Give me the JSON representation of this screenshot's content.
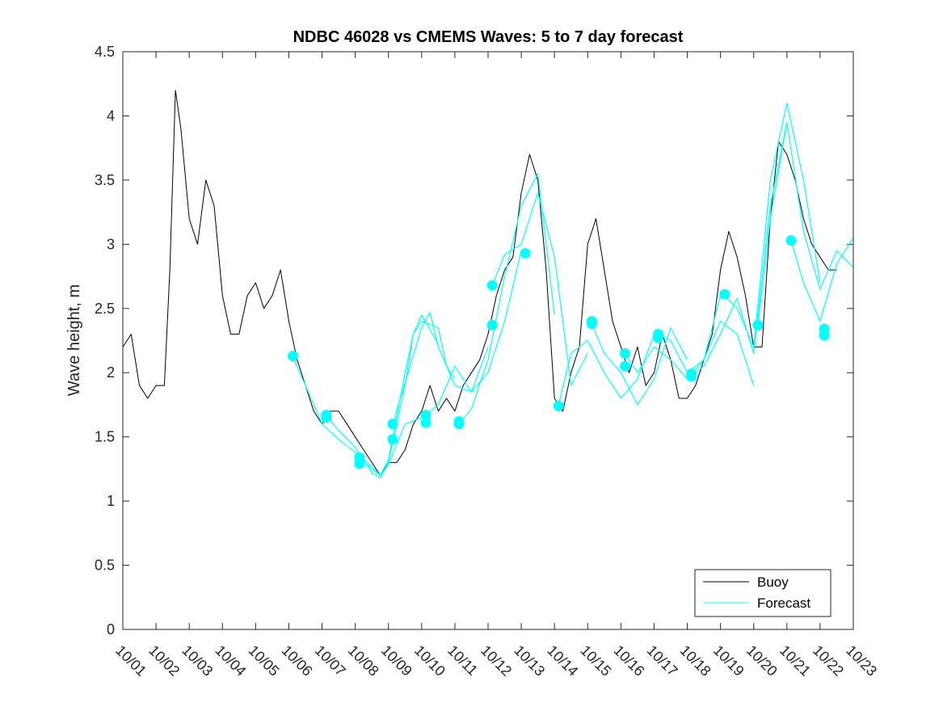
{
  "chart_data": {
    "type": "line",
    "title": "NDBC 46028 vs CMEMS Waves: 5 to 7 day forecast",
    "xlabel": "",
    "ylabel": "Wave height, m",
    "ylim": [
      0,
      4.5
    ],
    "yticks": [
      0,
      0.5,
      1,
      1.5,
      2,
      2.5,
      3,
      3.5,
      4,
      4.5
    ],
    "ytick_labels": [
      "0",
      "0.5",
      "1",
      "1.5",
      "2",
      "2.5",
      "3",
      "3.5",
      "4",
      "4.5"
    ],
    "xlim": [
      "10/01",
      "10/23"
    ],
    "xtick_labels": [
      "10/01",
      "10/02",
      "10/03",
      "10/04",
      "10/05",
      "10/06",
      "10/07",
      "10/08",
      "10/09",
      "10/10",
      "10/11",
      "10/12",
      "10/13",
      "10/14",
      "10/15",
      "10/16",
      "10/17",
      "10/18",
      "10/19",
      "10/20",
      "10/21",
      "10/22",
      "10/23"
    ],
    "grid": false,
    "legend": {
      "placement": "bottom-right",
      "entries": [
        "Buoy",
        "Forecast"
      ]
    },
    "colors": {
      "buoy": "#000000",
      "forecast": "#00ffff"
    },
    "series": [
      {
        "name": "Buoy",
        "style": "line",
        "x": [
          "10/01 00:00",
          "10/01 06:00",
          "10/01 12:00",
          "10/01 18:00",
          "10/02 00:00",
          "10/02 06:00",
          "10/02 10:00",
          "10/02 14:00",
          "10/02 18:00",
          "10/03 00:00",
          "10/03 06:00",
          "10/03 12:00",
          "10/03 18:00",
          "10/04 00:00",
          "10/04 06:00",
          "10/04 12:00",
          "10/04 18:00",
          "10/05 00:00",
          "10/05 06:00",
          "10/05 12:00",
          "10/05 18:00",
          "10/06 00:00",
          "10/06 06:00",
          "10/06 12:00",
          "10/06 18:00",
          "10/07 00:00",
          "10/07 06:00",
          "10/07 12:00",
          "10/07 18:00",
          "10/08 00:00",
          "10/08 06:00",
          "10/08 12:00",
          "10/08 18:00",
          "10/09 00:00",
          "10/09 06:00",
          "10/09 12:00",
          "10/09 18:00",
          "10/10 00:00",
          "10/10 06:00",
          "10/10 12:00",
          "10/10 18:00",
          "10/11 00:00",
          "10/11 06:00",
          "10/11 12:00",
          "10/11 18:00",
          "10/12 00:00",
          "10/12 06:00",
          "10/12 12:00",
          "10/12 18:00",
          "10/13 00:00",
          "10/13 06:00",
          "10/13 12:00",
          "10/13 18:00",
          "10/14 00:00",
          "10/14 06:00",
          "10/14 12:00",
          "10/14 18:00",
          "10/15 00:00",
          "10/15 06:00",
          "10/15 12:00",
          "10/15 18:00",
          "10/16 00:00",
          "10/16 06:00",
          "10/16 12:00",
          "10/16 18:00",
          "10/17 00:00",
          "10/17 06:00",
          "10/17 12:00",
          "10/17 18:00",
          "10/18 00:00",
          "10/18 06:00",
          "10/18 12:00",
          "10/18 18:00",
          "10/19 00:00",
          "10/19 06:00",
          "10/19 12:00",
          "10/19 18:00",
          "10/20 00:00",
          "10/20 06:00",
          "10/20 12:00",
          "10/20 18:00",
          "10/21 00:00",
          "10/21 06:00",
          "10/21 12:00",
          "10/21 18:00",
          "10/22 00:00",
          "10/22 06:00",
          "10/22 12:00"
        ],
        "values": [
          2.2,
          2.3,
          1.9,
          1.8,
          1.9,
          1.9,
          2.8,
          4.2,
          3.9,
          3.2,
          3.0,
          3.5,
          3.3,
          2.6,
          2.3,
          2.3,
          2.6,
          2.7,
          2.5,
          2.6,
          2.8,
          2.4,
          2.1,
          1.9,
          1.7,
          1.6,
          1.7,
          1.7,
          1.6,
          1.5,
          1.4,
          1.3,
          1.2,
          1.3,
          1.3,
          1.4,
          1.6,
          1.7,
          1.9,
          1.7,
          1.8,
          1.7,
          1.9,
          2.0,
          2.1,
          2.3,
          2.6,
          2.8,
          2.9,
          3.4,
          3.7,
          3.5,
          2.8,
          1.8,
          1.7,
          2.0,
          2.2,
          3.0,
          3.2,
          2.8,
          2.4,
          2.2,
          2.0,
          2.2,
          1.9,
          2.0,
          2.3,
          2.1,
          1.8,
          1.8,
          1.9,
          2.1,
          2.3,
          2.8,
          3.1,
          2.9,
          2.6,
          2.2,
          2.2,
          3.2,
          3.8,
          3.7,
          3.5,
          3.2,
          3.0,
          2.9,
          2.8,
          2.8
        ]
      },
      {
        "name": "Forecast",
        "style": "line",
        "segments": [
          {
            "x": [
              "10/06 03:00",
              "10/06 12:00",
              "10/07 00:00",
              "10/07 12:00",
              "10/08 00:00",
              "10/08 12:00",
              "10/08 18:00",
              "10/09 00:00",
              "10/09 12:00",
              "10/10 00:00"
            ],
            "values": [
              2.12,
              1.9,
              1.6,
              1.48,
              1.38,
              1.27,
              1.2,
              1.28,
              1.6,
              1.65
            ]
          },
          {
            "x": [
              "10/07 03:00",
              "10/07 12:00",
              "10/08 00:00",
              "10/08 12:00",
              "10/08 18:00",
              "10/09 00:00",
              "10/09 12:00",
              "10/09 18:00",
              "10/10 00:00",
              "10/10 12:00"
            ],
            "values": [
              1.66,
              1.55,
              1.42,
              1.22,
              1.18,
              1.3,
              1.9,
              2.3,
              2.45,
              2.22
            ]
          },
          {
            "x": [
              "10/08 03:00",
              "10/08 12:00",
              "10/08 18:00",
              "10/09 00:00",
              "10/09 12:00",
              "10/09 18:00",
              "10/10 00:00",
              "10/10 12:00",
              "10/10 18:00",
              "10/11 00:00"
            ],
            "values": [
              1.34,
              1.25,
              1.2,
              1.32,
              2.0,
              2.3,
              2.4,
              2.35,
              2.05,
              1.95
            ]
          },
          {
            "x": [
              "10/09 03:00",
              "10/09 12:00",
              "10/10 00:00",
              "10/10 06:00",
              "10/10 12:00",
              "10/11 00:00",
              "10/11 12:00",
              "10/12 00:00"
            ],
            "values": [
              1.6,
              1.92,
              2.35,
              2.47,
              2.2,
              1.9,
              1.85,
              2.2
            ]
          },
          {
            "x": [
              "10/10 03:00",
              "10/10 12:00",
              "10/11 00:00",
              "10/11 12:00",
              "10/12 00:00",
              "10/12 12:00",
              "10/13 00:00"
            ],
            "values": [
              1.67,
              1.75,
              2.05,
              1.85,
              2.0,
              2.4,
              2.95
            ]
          },
          {
            "x": [
              "10/11 03:00",
              "10/11 12:00",
              "10/12 00:00",
              "10/12 12:00",
              "10/13 00:00",
              "10/13 12:00",
              "10/14 00:00"
            ],
            "values": [
              1.6,
              1.72,
              2.1,
              2.75,
              3.3,
              3.55,
              2.45
            ]
          },
          {
            "x": [
              "10/12 03:00",
              "10/12 12:00",
              "10/13 00:00",
              "10/13 12:00",
              "10/14 00:00",
              "10/14 12:00",
              "10/15 00:00"
            ],
            "values": [
              2.68,
              2.92,
              3.0,
              3.4,
              2.9,
              1.9,
              2.15
            ]
          },
          {
            "x": [
              "10/14 03:00",
              "10/14 12:00",
              "10/15 00:00",
              "10/15 12:00",
              "10/16 00:00",
              "10/16 12:00",
              "10/17 00:00"
            ],
            "values": [
              1.75,
              2.15,
              2.25,
              2.0,
              1.8,
              1.95,
              2.3
            ]
          },
          {
            "x": [
              "10/15 03:00",
              "10/15 12:00",
              "10/16 00:00",
              "10/16 12:00",
              "10/17 00:00",
              "10/17 12:00",
              "10/18 00:00"
            ],
            "values": [
              2.38,
              2.15,
              2.0,
              1.75,
              1.95,
              2.35,
              2.1
            ]
          },
          {
            "x": [
              "10/16 03:00",
              "10/16 12:00",
              "10/17 00:00",
              "10/17 12:00",
              "10/18 00:00",
              "10/18 12:00",
              "10/19 00:00"
            ],
            "values": [
              2.15,
              2.0,
              2.2,
              2.1,
              1.95,
              2.1,
              2.6
            ]
          },
          {
            "x": [
              "10/17 03:00",
              "10/17 12:00",
              "10/18 00:00",
              "10/18 12:00",
              "10/19 00:00",
              "10/19 12:00",
              "10/20 00:00"
            ],
            "values": [
              2.3,
              2.25,
              2.0,
              2.1,
              2.4,
              2.3,
              1.9
            ]
          },
          {
            "x": [
              "10/18 03:00",
              "10/18 12:00",
              "10/19 00:00",
              "10/19 12:00",
              "10/20 00:00",
              "10/20 12:00",
              "10/21 00:00"
            ],
            "values": [
              1.98,
              2.05,
              2.3,
              2.58,
              2.15,
              3.3,
              3.95
            ]
          },
          {
            "x": [
              "10/19 03:00",
              "10/19 12:00",
              "10/20 00:00",
              "10/20 12:00",
              "10/21 00:00",
              "10/21 12:00",
              "10/22 00:00"
            ],
            "values": [
              2.6,
              2.5,
              2.2,
              3.5,
              4.1,
              3.5,
              2.7
            ]
          },
          {
            "x": [
              "10/20 03:00",
              "10/20 12:00",
              "10/21 00:00",
              "10/21 12:00",
              "10/22 00:00",
              "10/22 12:00",
              "10/23 00:00"
            ],
            "values": [
              2.37,
              3.2,
              3.95,
              3.1,
              2.65,
              2.95,
              2.82
            ]
          },
          {
            "x": [
              "10/21 03:00",
              "10/21 12:00",
              "10/22 00:00",
              "10/22 12:00",
              "10/23 00:00"
            ],
            "values": [
              3.03,
              2.7,
              2.4,
              2.85,
              3.05
            ]
          }
        ]
      },
      {
        "name": "Forecast",
        "style": "markers",
        "x": [
          "10/06 03:00",
          "10/07 03:00",
          "10/07 03:00",
          "10/08 03:00",
          "10/08 03:00",
          "10/09 03:00",
          "10/09 03:00",
          "10/10 03:00",
          "10/10 03:00",
          "10/11 03:00",
          "10/11 03:00",
          "10/12 03:00",
          "10/12 03:00",
          "10/13 03:00",
          "10/14 03:00",
          "10/15 03:00",
          "10/15 03:00",
          "10/16 03:00",
          "10/16 03:00",
          "10/17 03:00",
          "10/17 03:00",
          "10/18 03:00",
          "10/18 03:00",
          "10/19 03:00",
          "10/20 03:00",
          "10/21 03:00",
          "10/22 03:00",
          "10/22 03:00"
        ],
        "values": [
          2.13,
          1.65,
          1.67,
          1.29,
          1.34,
          1.48,
          1.6,
          1.61,
          1.67,
          1.6,
          1.62,
          2.37,
          2.68,
          2.93,
          1.74,
          2.38,
          2.4,
          2.05,
          2.15,
          2.3,
          2.27,
          1.97,
          1.99,
          2.61,
          2.37,
          3.03,
          2.29,
          2.34
        ]
      }
    ]
  }
}
